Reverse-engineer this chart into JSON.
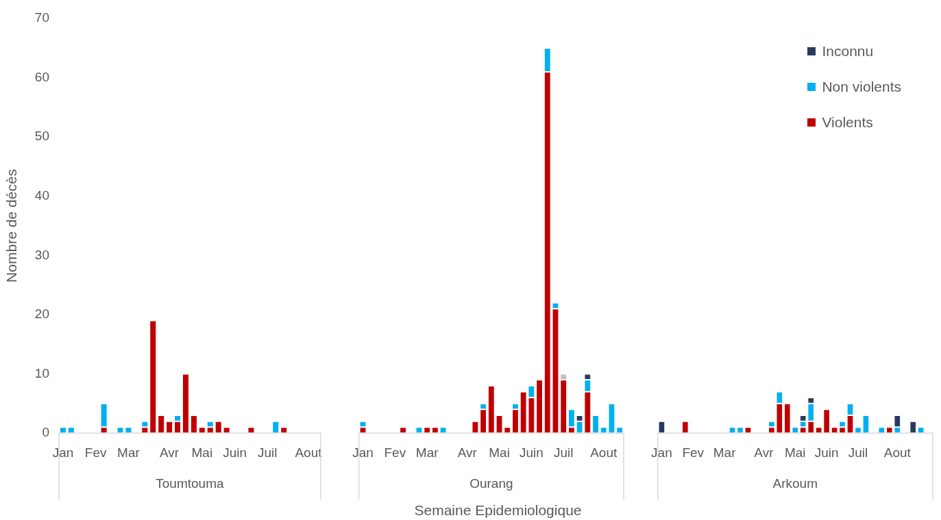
{
  "chart_data": [
    {
      "type": "bar",
      "stacked": true,
      "ylabel": "Nombre de décès",
      "xlabel": "Toumtouma",
      "ylim": [
        0,
        70
      ],
      "yticks": [
        0,
        10,
        20,
        30,
        40,
        50,
        60,
        70
      ],
      "grid": false,
      "legend": false,
      "categories": [
        "Jan",
        null,
        null,
        null,
        "Fev",
        null,
        null,
        null,
        "Mar",
        null,
        null,
        null,
        null,
        "Avr",
        null,
        null,
        null,
        "Mai",
        null,
        null,
        null,
        "Juin",
        null,
        null,
        null,
        "Juil",
        null,
        null,
        null,
        null,
        "Aout",
        null
      ],
      "series": [
        {
          "color": "#c00000",
          "values": [
            0,
            0,
            0,
            0,
            0,
            1,
            0,
            0,
            0,
            0,
            1,
            19,
            3,
            2,
            2,
            10,
            3,
            1,
            1,
            2,
            1,
            0,
            0,
            1,
            0,
            0,
            0,
            1,
            0,
            0,
            0,
            0
          ]
        },
        {
          "color": "#00b0f0",
          "values": [
            1,
            1,
            0,
            0,
            0,
            4,
            0,
            1,
            1,
            0,
            1,
            0,
            0,
            0,
            1,
            0,
            0,
            0,
            1,
            0,
            0,
            0,
            0,
            0,
            0,
            0,
            2,
            0,
            0,
            0,
            0,
            0
          ]
        }
      ]
    },
    {
      "type": "bar",
      "stacked": true,
      "xlabel": "Ourang",
      "ylim": [
        0,
        70
      ],
      "yticks": [
        0,
        10,
        20,
        30,
        40,
        50,
        60,
        70
      ],
      "grid": false,
      "legend": false,
      "tick_labels": "x",
      "annotations": [
        "Semaine Epidemiologique"
      ],
      "categories": [
        "Jan",
        null,
        null,
        null,
        "Fev",
        null,
        null,
        null,
        "Mar",
        null,
        null,
        null,
        null,
        "Avr",
        null,
        null,
        null,
        "Mai",
        null,
        null,
        null,
        "Juin",
        null,
        null,
        null,
        "Juil",
        null,
        null,
        null,
        null,
        "Aout",
        null,
        null
      ],
      "series": [
        {
          "color": "#c00000",
          "values": [
            1,
            0,
            0,
            0,
            0,
            1,
            0,
            0,
            1,
            1,
            0,
            0,
            0,
            0,
            2,
            4,
            8,
            3,
            1,
            4,
            7,
            6,
            9,
            61,
            21,
            9,
            1,
            0,
            7,
            0,
            0,
            0,
            0
          ]
        },
        {
          "color": "#00b0f0",
          "values": [
            1,
            0,
            0,
            0,
            0,
            0,
            0,
            1,
            0,
            0,
            1,
            0,
            0,
            0,
            0,
            1,
            0,
            0,
            0,
            1,
            0,
            2,
            0,
            4,
            1,
            0,
            3,
            2,
            2,
            3,
            1,
            5,
            1
          ]
        },
        {
          "color": "#bfbfbf",
          "values": [
            0,
            0,
            0,
            0,
            0,
            0,
            0,
            0,
            0,
            0,
            0,
            0,
            0,
            0,
            0,
            0,
            0,
            0,
            0,
            0,
            0,
            0,
            0,
            0,
            0,
            1,
            0,
            0,
            0,
            0,
            0,
            0,
            0
          ]
        },
        {
          "color": "#283a5e",
          "values": [
            0,
            0,
            0,
            0,
            0,
            0,
            0,
            0,
            0,
            0,
            0,
            0,
            0,
            0,
            0,
            0,
            0,
            0,
            0,
            0,
            0,
            0,
            0,
            0,
            0,
            0,
            0,
            1,
            1,
            0,
            0,
            0,
            0
          ]
        }
      ]
    },
    {
      "type": "bar",
      "stacked": true,
      "xlabel": "Arkoum",
      "ylim": [
        0,
        70
      ],
      "yticks": [
        0,
        10,
        20,
        30,
        40,
        50,
        60,
        70
      ],
      "grid": false,
      "legend": "top right",
      "tick_labels": "x",
      "categories": [
        "Jan",
        null,
        null,
        null,
        "Fev",
        null,
        null,
        null,
        "Mar",
        null,
        null,
        null,
        null,
        "Avr",
        null,
        null,
        null,
        "Mai",
        null,
        null,
        null,
        "Juin",
        null,
        null,
        null,
        "Juil",
        null,
        null,
        null,
        null,
        "Aout",
        null,
        null,
        null,
        null
      ],
      "series": [
        {
          "name": "Violents",
          "color": "#c00000",
          "values": [
            0,
            0,
            0,
            2,
            0,
            0,
            0,
            0,
            0,
            0,
            0,
            1,
            0,
            0,
            1,
            5,
            5,
            0,
            1,
            2,
            1,
            4,
            1,
            1,
            3,
            0,
            0,
            0,
            0,
            1,
            0,
            0,
            0,
            0,
            0
          ]
        },
        {
          "name": "Non violents",
          "color": "#00b0f0",
          "values": [
            0,
            0,
            0,
            0,
            0,
            0,
            0,
            0,
            0,
            1,
            1,
            0,
            0,
            0,
            1,
            2,
            0,
            1,
            1,
            3,
            0,
            0,
            0,
            1,
            2,
            1,
            3,
            0,
            1,
            0,
            1,
            0,
            0,
            1,
            0
          ]
        },
        {
          "name": "Inconnu",
          "color": "#283a5e",
          "values": [
            2,
            0,
            0,
            0,
            0,
            0,
            0,
            0,
            0,
            0,
            0,
            0,
            0,
            0,
            0,
            0,
            0,
            0,
            1,
            1,
            0,
            0,
            0,
            0,
            0,
            0,
            0,
            0,
            0,
            0,
            2,
            0,
            2,
            0,
            0
          ]
        }
      ]
    }
  ]
}
